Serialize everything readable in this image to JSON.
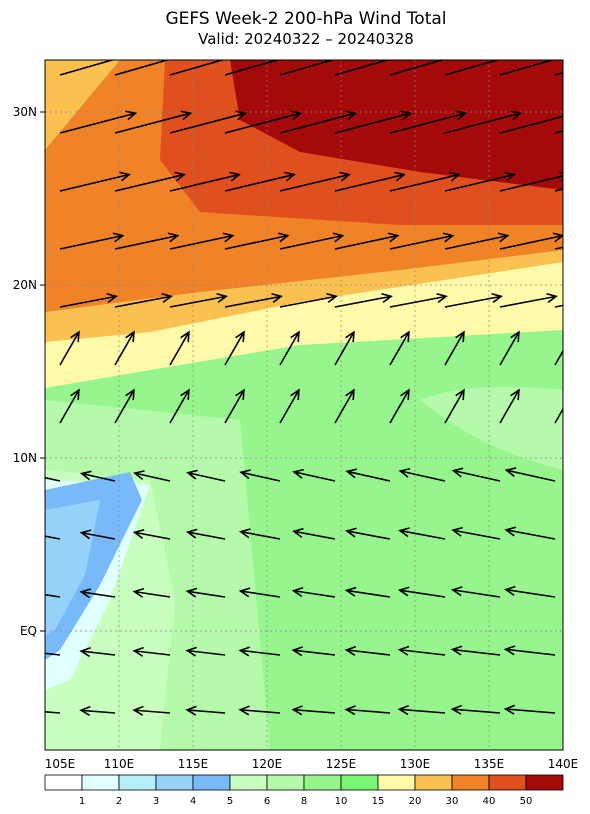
{
  "title": "GEFS Week-2 200-hPa Wind Total",
  "subtitle": "Valid: 20240322 – 20240328",
  "lat_labels": [
    "30N",
    "20N",
    "10N",
    "EQ"
  ],
  "lon_labels": [
    "105E",
    "110E",
    "115E",
    "120E",
    "125E",
    "130E",
    "135E",
    "140E"
  ],
  "colorbar": {
    "labels": [
      "1",
      "2",
      "3",
      "4",
      "5",
      "6",
      "8",
      "10",
      "15",
      "20",
      "30",
      "40",
      "50"
    ],
    "colors": [
      "#ffffff",
      "#e1ffff",
      "#b4f0fa",
      "#96d2fa",
      "#78b9fa",
      "#c8ffbe",
      "#b4faaa",
      "#96f58c",
      "#78f573",
      "#fffaaa",
      "#fac050",
      "#f08228",
      "#e0501e",
      "#a50a0a"
    ]
  }
}
